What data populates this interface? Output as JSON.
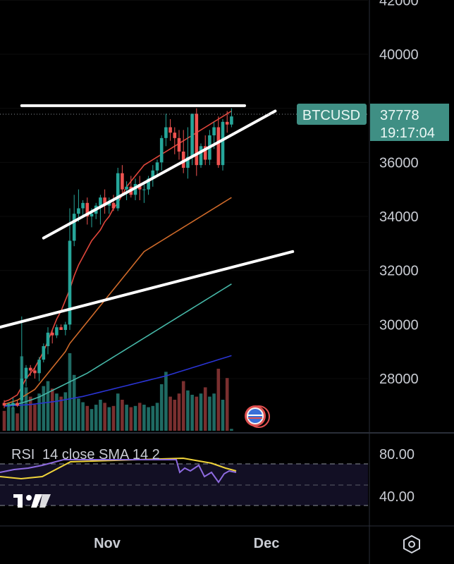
{
  "chart_data": {
    "type": "candlestick",
    "symbol": "BTCUSD",
    "last_price": "37778",
    "countdown": "19:17:04",
    "y_ticks": [
      "42000",
      "40000",
      "36000",
      "34000",
      "32000",
      "30000",
      "28000"
    ],
    "x_ticks": [
      "Nov",
      "Dec"
    ],
    "ylim": [
      26900,
      42100
    ],
    "candles": [
      [
        27100,
        27200,
        26900,
        27000
      ],
      [
        27000,
        27100,
        26950,
        27050
      ],
      [
        27050,
        27300,
        26900,
        27100
      ],
      [
        27100,
        27200,
        26950,
        27000
      ],
      [
        27200,
        30300,
        27100,
        28000
      ],
      [
        28000,
        28500,
        27700,
        28400
      ],
      [
        28400,
        28500,
        28100,
        28300
      ],
      [
        28300,
        28400,
        28000,
        28200
      ],
      [
        28200,
        28800,
        27900,
        28700
      ],
      [
        28700,
        29300,
        28600,
        29200
      ],
      [
        29200,
        29900,
        28900,
        29700
      ],
      [
        29700,
        29800,
        29300,
        29600
      ],
      [
        29600,
        30000,
        29500,
        29900
      ],
      [
        29900,
        30000,
        29800,
        29800
      ],
      [
        29800,
        30100,
        29600,
        30000
      ],
      [
        30000,
        34300,
        29800,
        33100
      ],
      [
        33100,
        34800,
        32900,
        34100
      ],
      [
        34100,
        35000,
        33800,
        34300
      ],
      [
        34300,
        34600,
        34000,
        34500
      ],
      [
        34500,
        34700,
        33700,
        34000
      ],
      [
        34000,
        34300,
        33600,
        34100
      ],
      [
        34100,
        34500,
        33900,
        34400
      ],
      [
        34400,
        34800,
        33700,
        34700
      ],
      [
        34700,
        35000,
        34100,
        34400
      ],
      [
        34400,
        34700,
        34100,
        34500
      ],
      [
        34500,
        34800,
        34200,
        34300
      ],
      [
        34300,
        35800,
        34200,
        35600
      ],
      [
        35600,
        35900,
        34800,
        35000
      ],
      [
        35000,
        35300,
        34600,
        35100
      ],
      [
        35100,
        35500,
        34700,
        34800
      ],
      [
        34800,
        35400,
        34600,
        35200
      ],
      [
        35200,
        35500,
        34600,
        35000
      ],
      [
        35000,
        35300,
        34500,
        35000
      ],
      [
        35000,
        35500,
        34800,
        35400
      ],
      [
        35400,
        35900,
        35100,
        35700
      ],
      [
        35700,
        36100,
        35500,
        36000
      ],
      [
        36000,
        37000,
        35700,
        36900
      ],
      [
        36900,
        37800,
        36600,
        37300
      ],
      [
        37300,
        37600,
        36800,
        37100
      ],
      [
        37100,
        37300,
        36300,
        36900
      ],
      [
        36900,
        37200,
        36100,
        36400
      ],
      [
        36400,
        37200,
        35600,
        35800
      ],
      [
        35800,
        37300,
        35400,
        36200
      ],
      [
        36200,
        37800,
        35900,
        37800
      ],
      [
        37800,
        38000,
        35500,
        35900
      ],
      [
        35900,
        36700,
        35800,
        36600
      ],
      [
        36600,
        37000,
        35900,
        36100
      ],
      [
        36100,
        37200,
        35900,
        37000
      ],
      [
        37000,
        37500,
        36500,
        37300
      ],
      [
        37300,
        37700,
        35800,
        35900
      ],
      [
        35900,
        37600,
        35700,
        37500
      ],
      [
        37500,
        37900,
        37100,
        37400
      ],
      [
        37400,
        38000,
        37300,
        37700
      ]
    ],
    "volumes": [
      0.32,
      0.45,
      0.38,
      0.28,
      1.2,
      0.7,
      0.55,
      0.42,
      0.6,
      0.72,
      0.8,
      0.68,
      0.6,
      0.55,
      0.62,
      1.25,
      0.9,
      0.52,
      0.46,
      0.4,
      0.35,
      0.42,
      0.5,
      0.45,
      0.38,
      0.4,
      0.6,
      0.5,
      0.42,
      0.38,
      0.4,
      0.45,
      0.42,
      0.38,
      0.4,
      0.45,
      0.75,
      0.95,
      0.55,
      0.5,
      0.6,
      0.8,
      0.65,
      0.58,
      0.55,
      0.6,
      0.7,
      0.55,
      0.6,
      1.0,
      0.5,
      0.85,
      0.03
    ],
    "ma_series": [
      {
        "color": "#e0463b",
        "values": [
          27150,
          27200,
          27300,
          27400,
          27700,
          28000,
          28200,
          28400,
          28700,
          29000,
          29400,
          29800,
          30200,
          30500,
          30900,
          31300,
          31800,
          32200,
          32500,
          32800,
          33100,
          33300,
          33500,
          33800,
          34000,
          34300,
          34500,
          34800,
          35100,
          35300,
          35500,
          35700,
          35900,
          36000,
          36100,
          36200,
          36300,
          36400,
          36500,
          36600,
          36700,
          36800,
          36900,
          37000,
          37100,
          37200,
          37300,
          37400,
          37500,
          37600,
          37700,
          37800,
          37900
        ]
      },
      {
        "color": "#cf6a2a",
        "values": [
          27050,
          27100,
          27150,
          27200,
          27300,
          27400,
          27500,
          27600,
          27800,
          28000,
          28200,
          28400,
          28600,
          28800,
          29000,
          29300,
          29500,
          29700,
          29900,
          30100,
          30300,
          30500,
          30700,
          30900,
          31100,
          31300,
          31500,
          31700,
          31900,
          32100,
          32300,
          32500,
          32700,
          32800,
          32900,
          33000,
          33100,
          33200,
          33300,
          33400,
          33500,
          33600,
          33700,
          33800,
          33900,
          34000,
          34100,
          34200,
          34300,
          34400,
          34500,
          34600,
          34700
        ]
      },
      {
        "color": "#46b8a8",
        "values": [
          27000,
          27020,
          27040,
          27060,
          27100,
          27150,
          27200,
          27260,
          27320,
          27400,
          27480,
          27560,
          27640,
          27720,
          27800,
          27880,
          27960,
          28040,
          28120,
          28200,
          28300,
          28400,
          28500,
          28600,
          28700,
          28800,
          28900,
          29000,
          29100,
          29200,
          29300,
          29400,
          29500,
          29600,
          29700,
          29800,
          29900,
          30000,
          30100,
          30200,
          30300,
          30400,
          30500,
          30600,
          30700,
          30800,
          30900,
          31000,
          31100,
          31200,
          31300,
          31400,
          31500
        ]
      },
      {
        "color": "#2a34d4",
        "values": [
          26980,
          26990,
          27000,
          27010,
          27020,
          27030,
          27040,
          27060,
          27080,
          27100,
          27120,
          27140,
          27160,
          27190,
          27220,
          27250,
          27280,
          27310,
          27340,
          27380,
          27420,
          27460,
          27500,
          27540,
          27580,
          27620,
          27660,
          27700,
          27740,
          27780,
          27820,
          27860,
          27900,
          27940,
          27980,
          28020,
          28060,
          28100,
          28150,
          28200,
          28250,
          28300,
          28350,
          28400,
          28450,
          28500,
          28550,
          28600,
          28650,
          28700,
          28750,
          28800,
          28850
        ]
      }
    ],
    "trendlines": [
      {
        "from": [
          -1,
          29900
        ],
        "to": [
          66,
          32700
        ]
      },
      {
        "from": [
          9,
          33200
        ],
        "to": [
          62,
          37900
        ]
      },
      {
        "from": [
          4,
          38100
        ],
        "to": [
          55,
          38100
        ]
      }
    ],
    "rsi": {
      "label": "RSI",
      "params": "14 close SMA 14 2",
      "levels": [
        "80.00",
        "40.00"
      ]
    },
    "colors": {
      "up": "#26a69a",
      "down": "#ef5350",
      "badge": "#3f8f84"
    }
  }
}
